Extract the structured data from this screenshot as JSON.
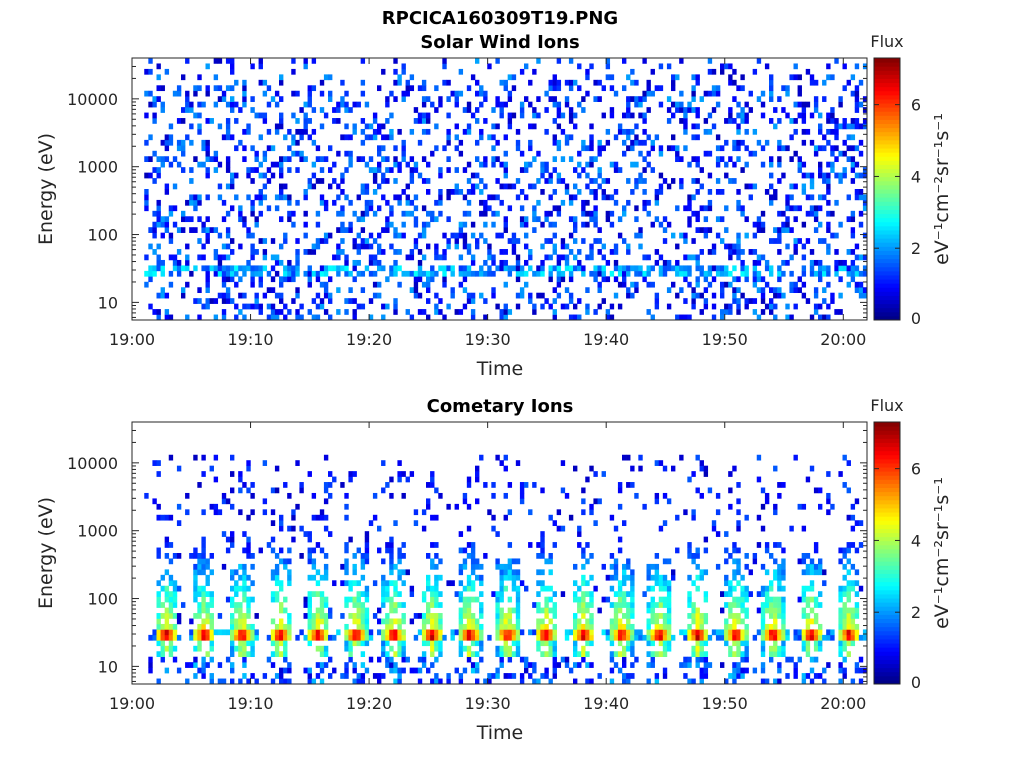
{
  "figure_title": "RPCICA160309T19.PNG",
  "chart_data": [
    {
      "type": "heatmap",
      "title": "Solar Wind Ions",
      "xlabel": "Time",
      "ylabel": "Energy (eV)",
      "x_ticks": [
        "19:00",
        "19:10",
        "19:20",
        "19:30",
        "19:40",
        "19:50",
        "20:00"
      ],
      "x_range": [
        "19:00",
        "20:02"
      ],
      "y_scale": "log",
      "y_ticks": [
        "10",
        "100",
        "1000",
        "10000"
      ],
      "y_range": [
        5.5,
        40000
      ],
      "colorbar": {
        "title": "Flux",
        "label": "eV⁻¹cm⁻²sr⁻¹s⁻¹",
        "ticks": [
          "0",
          "2",
          "4",
          "6"
        ],
        "range": [
          0,
          7.3
        ],
        "colormap": "jet"
      },
      "description_of_values": {
        "background_flux": "sparse 0.5–2.5 at all energies",
        "periodic_features": [
          {
            "energy_eV": 30,
            "flux": 2.5,
            "period_min": 3.2
          },
          {
            "energy_eV": 1300,
            "flux": 2.5,
            "period_min": 3.2
          },
          {
            "energy_eV": 2500,
            "flux": 2.3,
            "period_min": 3.2
          }
        ]
      }
    },
    {
      "type": "heatmap",
      "title": "Cometary Ions",
      "xlabel": "Time",
      "ylabel": "Energy (eV)",
      "x_ticks": [
        "19:00",
        "19:10",
        "19:20",
        "19:30",
        "19:40",
        "19:50",
        "20:00"
      ],
      "x_range": [
        "19:00",
        "20:02"
      ],
      "y_scale": "log",
      "y_ticks": [
        "10",
        "100",
        "1000",
        "10000"
      ],
      "y_range": [
        5.5,
        40000
      ],
      "colorbar": {
        "title": "Flux",
        "label": "eV⁻¹cm⁻²sr⁻¹s⁻¹",
        "ticks": [
          "0",
          "2",
          "4",
          "6"
        ],
        "range": [
          0,
          7.3
        ],
        "colormap": "jet"
      },
      "description_of_values": {
        "peak_energy_eV": 30,
        "peak_flux": 6.0,
        "period_min": 3.2,
        "plume_extends_to_eV": 600
      }
    }
  ]
}
